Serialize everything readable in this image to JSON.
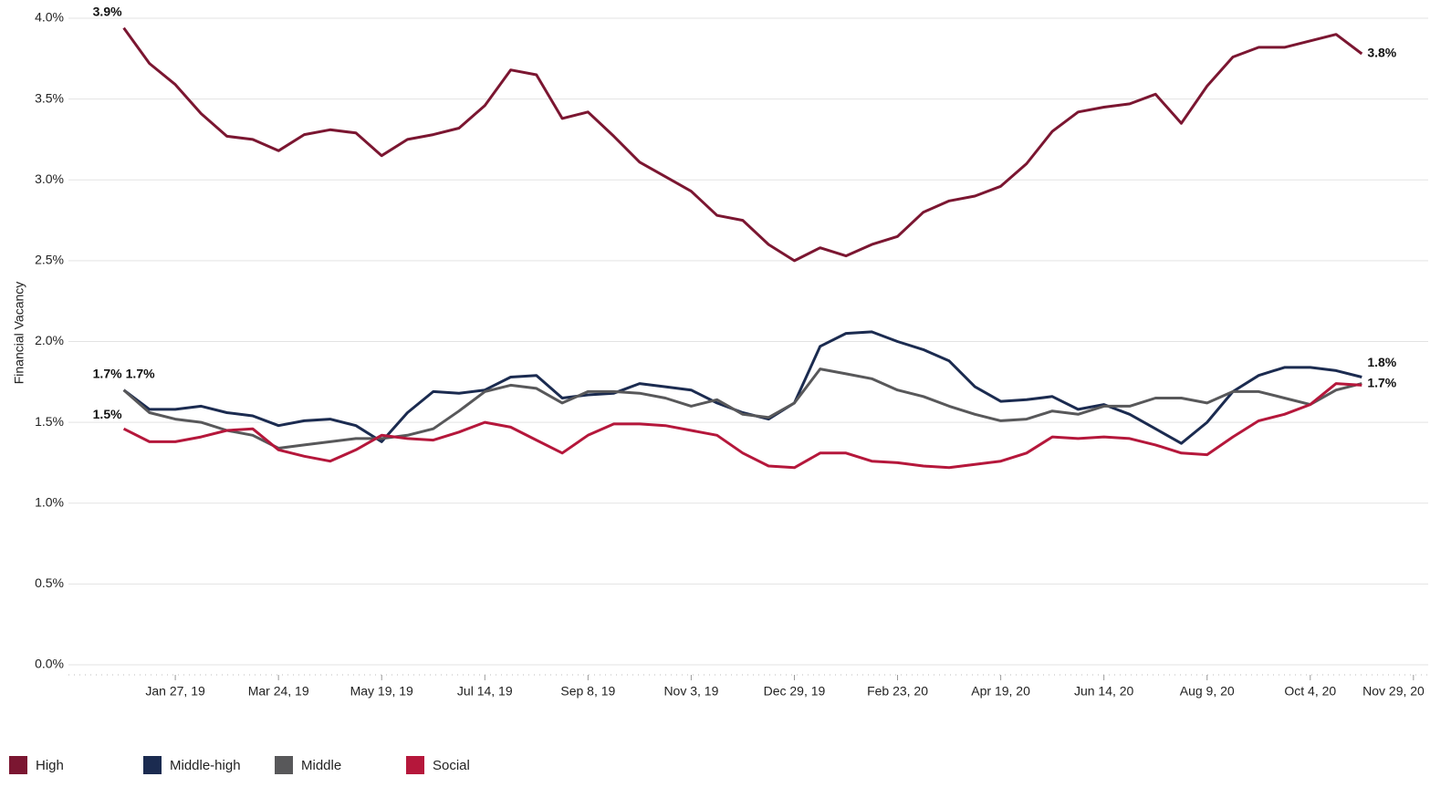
{
  "chart_data": {
    "type": "line",
    "y_label": "Financial Vacancy",
    "x": [
      "2018-12-30",
      "2019-01-13",
      "2019-01-27",
      "2019-02-10",
      "2019-02-24",
      "2019-03-10",
      "2019-03-24",
      "2019-04-07",
      "2019-04-21",
      "2019-05-05",
      "2019-05-19",
      "2019-06-02",
      "2019-06-16",
      "2019-06-30",
      "2019-07-14",
      "2019-07-28",
      "2019-08-11",
      "2019-08-25",
      "2019-09-08",
      "2019-09-22",
      "2019-10-06",
      "2019-10-20",
      "2019-11-03",
      "2019-11-17",
      "2019-12-01",
      "2019-12-15",
      "2019-12-29",
      "2020-01-12",
      "2020-01-26",
      "2020-02-09",
      "2020-02-23",
      "2020-03-08",
      "2020-03-22",
      "2020-04-05",
      "2020-04-19",
      "2020-05-03",
      "2020-05-17",
      "2020-05-31",
      "2020-06-14",
      "2020-06-28",
      "2020-07-12",
      "2020-07-26",
      "2020-08-09",
      "2020-08-23",
      "2020-09-06",
      "2020-09-20",
      "2020-10-04",
      "2020-10-18",
      "2020-11-01"
    ],
    "xlim": [
      "2018-11-30",
      "2020-12-07"
    ],
    "xticks": [
      {
        "value": "2019-01-27",
        "label": "Jan 27, 19"
      },
      {
        "value": "2019-03-24",
        "label": "Mar 24, 19"
      },
      {
        "value": "2019-05-19",
        "label": "May 19, 19"
      },
      {
        "value": "2019-07-14",
        "label": "Jul 14, 19"
      },
      {
        "value": "2019-09-08",
        "label": "Sep 8, 19"
      },
      {
        "value": "2019-11-03",
        "label": "Nov 3, 19"
      },
      {
        "value": "2019-12-29",
        "label": "Dec 29, 19"
      },
      {
        "value": "2020-02-23",
        "label": "Feb 23, 20"
      },
      {
        "value": "2020-04-19",
        "label": "Apr 19, 20"
      },
      {
        "value": "2020-06-14",
        "label": "Jun 14, 20"
      },
      {
        "value": "2020-08-09",
        "label": "Aug 9, 20"
      },
      {
        "value": "2020-10-04",
        "label": "Oct 4, 20"
      },
      {
        "value": "2020-11-29",
        "label": "Nov 29, 20"
      }
    ],
    "ylim": [
      0,
      4
    ],
    "yticks": [
      {
        "value": 0,
        "label": "0.0%"
      },
      {
        "value": 0.5,
        "label": "0.5%"
      },
      {
        "value": 1,
        "label": "1.0%"
      },
      {
        "value": 1.5,
        "label": "1.5%"
      },
      {
        "value": 2,
        "label": "2.0%"
      },
      {
        "value": 2.5,
        "label": "2.5%"
      },
      {
        "value": 3,
        "label": "3.0%"
      },
      {
        "value": 3.5,
        "label": "3.5%"
      },
      {
        "value": 4,
        "label": "4.0%"
      }
    ],
    "grid": true,
    "series": [
      {
        "name": "High",
        "color": "#7b1631",
        "values": [
          3.94,
          3.72,
          3.59,
          3.41,
          3.27,
          3.25,
          3.18,
          3.28,
          3.31,
          3.29,
          3.15,
          3.25,
          3.28,
          3.32,
          3.46,
          3.68,
          3.65,
          3.38,
          3.42,
          3.27,
          3.11,
          3.02,
          2.93,
          2.78,
          2.75,
          2.6,
          2.5,
          2.58,
          2.53,
          2.6,
          2.65,
          2.8,
          2.87,
          2.9,
          2.96,
          3.1,
          3.3,
          3.42,
          3.45,
          3.47,
          3.53,
          3.35,
          3.58,
          3.76,
          3.82,
          3.82,
          3.86,
          3.9,
          3.78
        ],
        "value_labels": [
          "3.9%",
          null,
          null,
          null,
          null,
          null,
          null,
          null,
          null,
          null,
          null,
          null,
          null,
          null,
          null,
          null,
          null,
          null,
          null,
          null,
          null,
          null,
          null,
          null,
          null,
          null,
          null,
          null,
          null,
          null,
          null,
          null,
          null,
          null,
          null,
          null,
          null,
          null,
          null,
          null,
          null,
          null,
          null,
          null,
          null,
          null,
          null,
          null,
          "3.8%"
        ]
      },
      {
        "name": "Middle-high",
        "color": "#1b2b50",
        "values": [
          1.7,
          1.58,
          1.58,
          1.6,
          1.56,
          1.54,
          1.48,
          1.51,
          1.52,
          1.48,
          1.38,
          1.56,
          1.69,
          1.68,
          1.7,
          1.78,
          1.79,
          1.65,
          1.67,
          1.68,
          1.74,
          1.72,
          1.7,
          1.62,
          1.56,
          1.52,
          1.62,
          1.97,
          2.05,
          2.06,
          2.0,
          1.95,
          1.88,
          1.72,
          1.63,
          1.64,
          1.66,
          1.58,
          1.61,
          1.55,
          1.46,
          1.37,
          1.5,
          1.69,
          1.79,
          1.84,
          1.84,
          1.82,
          1.78
        ],
        "value_labels": [
          "1.7%",
          null,
          null,
          null,
          null,
          null,
          null,
          null,
          null,
          null,
          null,
          null,
          null,
          null,
          null,
          null,
          null,
          null,
          null,
          null,
          null,
          null,
          null,
          null,
          null,
          null,
          null,
          null,
          null,
          null,
          null,
          null,
          null,
          null,
          null,
          null,
          null,
          null,
          null,
          null,
          null,
          null,
          null,
          null,
          null,
          null,
          null,
          null,
          "1.8%"
        ]
      },
      {
        "name": "Middle",
        "color": "#58585a",
        "values": [
          1.7,
          1.56,
          1.52,
          1.5,
          1.45,
          1.42,
          1.34,
          1.36,
          1.38,
          1.4,
          1.4,
          1.42,
          1.46,
          1.57,
          1.69,
          1.73,
          1.71,
          1.62,
          1.69,
          1.69,
          1.68,
          1.65,
          1.6,
          1.64,
          1.55,
          1.53,
          1.62,
          1.83,
          1.8,
          1.77,
          1.7,
          1.66,
          1.6,
          1.55,
          1.51,
          1.52,
          1.57,
          1.55,
          1.6,
          1.6,
          1.65,
          1.65,
          1.62,
          1.69,
          1.69,
          1.65,
          1.61,
          1.7,
          1.74
        ],
        "value_labels": [
          "1.7%",
          null,
          null,
          null,
          null,
          null,
          null,
          null,
          null,
          null,
          null,
          null,
          null,
          null,
          null,
          null,
          null,
          null,
          null,
          null,
          null,
          null,
          null,
          null,
          null,
          null,
          null,
          null,
          null,
          null,
          null,
          null,
          null,
          null,
          null,
          null,
          null,
          null,
          null,
          null,
          null,
          null,
          null,
          null,
          null,
          null,
          null,
          null,
          "1.7%"
        ]
      },
      {
        "name": "Social",
        "color": "#b5173b",
        "values": [
          1.46,
          1.38,
          1.38,
          1.41,
          1.45,
          1.46,
          1.33,
          1.29,
          1.26,
          1.33,
          1.42,
          1.4,
          1.39,
          1.44,
          1.5,
          1.47,
          1.39,
          1.31,
          1.42,
          1.49,
          1.49,
          1.48,
          1.45,
          1.42,
          1.31,
          1.23,
          1.22,
          1.31,
          1.31,
          1.26,
          1.25,
          1.23,
          1.22,
          1.24,
          1.26,
          1.31,
          1.41,
          1.4,
          1.41,
          1.4,
          1.36,
          1.31,
          1.3,
          1.41,
          1.51,
          1.55,
          1.61,
          1.74,
          1.73
        ],
        "value_labels": [
          "1.5%",
          null,
          null,
          null,
          null,
          null,
          null,
          null,
          null,
          null,
          null,
          null,
          null,
          null,
          null,
          null,
          null,
          null,
          null,
          null,
          null,
          null,
          null,
          null,
          null,
          null,
          null,
          null,
          null,
          null,
          null,
          null,
          null,
          null,
          null,
          null,
          null,
          null,
          null,
          null,
          null,
          null,
          null,
          null,
          null,
          null,
          null,
          null,
          null
        ]
      }
    ]
  }
}
